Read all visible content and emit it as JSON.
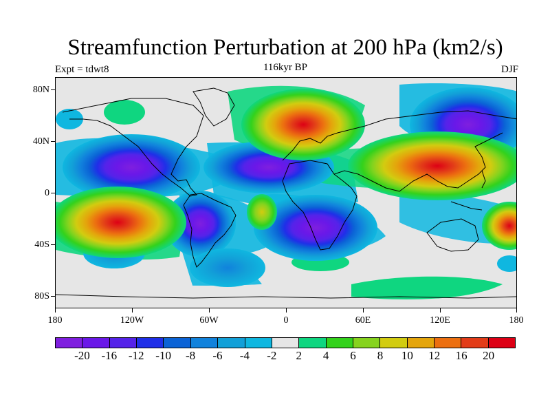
{
  "title": "Streamfunction Perturbation at 200 hPa (km2/s)",
  "left_string": "Expt = tdwt8",
  "center_string": "116kyr BP",
  "right_string": "DJF",
  "lat_labels": [
    "80N",
    "40N",
    "0",
    "40S",
    "80S"
  ],
  "lon_labels": [
    "180",
    "120W",
    "60W",
    "0",
    "60E",
    "120E",
    "180"
  ],
  "colorbar": {
    "labels": [
      "-20",
      "-16",
      "-12",
      "-10",
      "-8",
      "-6",
      "-4",
      "-2",
      "2",
      "4",
      "6",
      "8",
      "10",
      "12",
      "16",
      "20"
    ],
    "colors": [
      "#7f1fdf",
      "#6a18e8",
      "#5523e9",
      "#1f2fe8",
      "#0b63d6",
      "#1182dc",
      "#12a0d8",
      "#0fb7e0",
      "#e6e6e6",
      "#0fd680",
      "#33d21c",
      "#86d31e",
      "#d2cc10",
      "#e4a50c",
      "#ec6f10",
      "#e23c18",
      "#dd0015"
    ]
  }
}
